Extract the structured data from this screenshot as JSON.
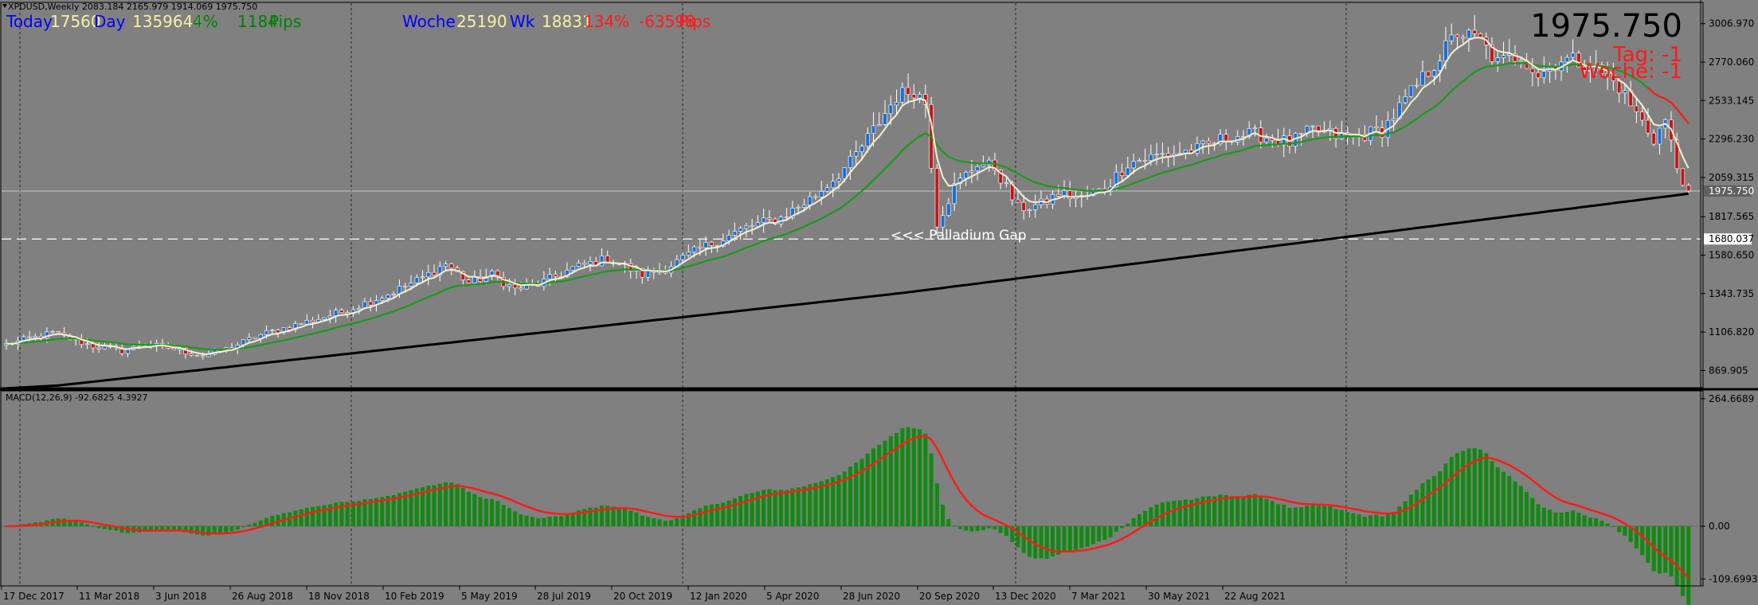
{
  "header": {
    "symbol_line": "XPDUSD,Weekly  2083.184 2165.979 1914.069 1975.750",
    "today_label": "Today",
    "today_val1": "17560",
    "day_label": "Day",
    "day_val": "1359644",
    "day_pct": "4%",
    "day_pips": "1184",
    "day_pips_suffix": "Pips",
    "week_label": "Woche",
    "week_val1": "25190",
    "week_label2": "Wk",
    "week_val2": "18831",
    "week_pct": "134%",
    "week_pips": "-63598",
    "week_pips_suffix": "Pips"
  },
  "price_box": {
    "price": "1975.750",
    "tag_line": "Tag: -1",
    "woche_line": "Woche: -1"
  },
  "annotation": {
    "gap_label": "<<< Palladium Gap",
    "gap_level": 1680.037,
    "gap_level_label": "1680.037"
  },
  "macd_label": "MACD(12,26,9) -92.6825 4.3927",
  "colors": {
    "background": "#808080",
    "bull_candle": "#1a6fd6",
    "bear_candle": "#c21818",
    "ema_fast": "#f2f0d0",
    "ema_mid": "#1a9a1a",
    "ema_slow": "#000000",
    "macd_hist": "#118a11",
    "macd_signal": "#ff1a1a",
    "blue_text": "#0000ff",
    "cream_text": "#f5f0a0",
    "green_text": "#008000",
    "red_text": "#ff1a1a"
  },
  "chart_data": {
    "type": "candlestick",
    "price_axis_ticks": [
      "3006.970",
      "2770.060",
      "2533.145",
      "2296.230",
      "2059.315",
      "1817.565",
      "1580.650",
      "1343.735",
      "1106.820",
      "869.905"
    ],
    "price_axis_values": [
      3006.97,
      2770.06,
      2533.145,
      2296.23,
      2059.315,
      1817.565,
      1580.65,
      1343.735,
      1106.82,
      869.905
    ],
    "price_range": [
      764,
      3133
    ],
    "current_price": 1975.75,
    "current_price_label": "1975.750",
    "macd_axis_ticks": [
      "264.6689",
      "0.00",
      "-109.6993"
    ],
    "macd_axis_values": [
      264.6689,
      0,
      -109.6993
    ],
    "macd_range": [
      -124,
      281
    ],
    "x_ticks": [
      "17 Dec 2017",
      "11 Mar 2018",
      "3 Jun 2018",
      "26 Aug 2018",
      "18 Nov 2018",
      "10 Feb 2019",
      "5 May 2019",
      "28 Jul 2019",
      "20 Oct 2019",
      "12 Jan 2020",
      "5 Apr 2020",
      "28 Jun 2020",
      "20 Sep 2020",
      "13 Dec 2020",
      "7 Mar 2021",
      "30 May 2021",
      "22 Aug 2021"
    ],
    "anchors": [
      [
        0,
        1030
      ],
      [
        8,
        1100
      ],
      [
        15,
        1020
      ],
      [
        20,
        990
      ],
      [
        24,
        1030
      ],
      [
        28,
        1010
      ],
      [
        34,
        960
      ],
      [
        38,
        1000
      ],
      [
        44,
        1090
      ],
      [
        52,
        1170
      ],
      [
        58,
        1230
      ],
      [
        66,
        1340
      ],
      [
        72,
        1440
      ],
      [
        76,
        1530
      ],
      [
        80,
        1410
      ],
      [
        84,
        1460
      ],
      [
        88,
        1370
      ],
      [
        92,
        1400
      ],
      [
        98,
        1500
      ],
      [
        104,
        1560
      ],
      [
        110,
        1460
      ],
      [
        114,
        1500
      ],
      [
        120,
        1620
      ],
      [
        128,
        1750
      ],
      [
        134,
        1810
      ],
      [
        140,
        1950
      ],
      [
        146,
        2150
      ],
      [
        150,
        2350
      ],
      [
        154,
        2560
      ],
      [
        157,
        2600
      ],
      [
        159,
        2520
      ],
      [
        161,
        1780
      ],
      [
        164,
        2000
      ],
      [
        168,
        2150
      ],
      [
        171,
        2120
      ],
      [
        175,
        1870
      ],
      [
        179,
        1890
      ],
      [
        182,
        1960
      ],
      [
        186,
        1930
      ],
      [
        190,
        1990
      ],
      [
        194,
        2150
      ],
      [
        200,
        2200
      ],
      [
        206,
        2230
      ],
      [
        212,
        2320
      ],
      [
        217,
        2320
      ],
      [
        222,
        2270
      ],
      [
        226,
        2350
      ],
      [
        232,
        2300
      ],
      [
        238,
        2350
      ],
      [
        243,
        2580
      ],
      [
        247,
        2760
      ],
      [
        251,
        2950
      ],
      [
        255,
        2900
      ],
      [
        258,
        2760
      ],
      [
        262,
        2820
      ],
      [
        265,
        2690
      ],
      [
        269,
        2790
      ],
      [
        273,
        2770
      ],
      [
        276,
        2700
      ],
      [
        279,
        2620
      ],
      [
        282,
        2450
      ],
      [
        285,
        2300
      ],
      [
        287,
        2410
      ],
      [
        289,
        2120
      ],
      [
        291,
        1975.75
      ]
    ],
    "weekly_candles": 292,
    "moving_averages": [
      {
        "period": "fast",
        "color": "ema_fast"
      },
      {
        "period": "mid",
        "color": "ema_mid"
      },
      {
        "period": "slow",
        "color": "ema_slow"
      }
    ],
    "macd_signal_anchors": [
      [
        0,
        25
      ],
      [
        10,
        20
      ],
      [
        20,
        -5
      ],
      [
        40,
        -15
      ],
      [
        60,
        -20
      ],
      [
        80,
        15
      ],
      [
        110,
        70
      ],
      [
        128,
        135
      ],
      [
        150,
        55
      ],
      [
        174,
        60
      ],
      [
        206,
        90
      ],
      [
        236,
        120
      ],
      [
        262,
        75
      ],
      [
        292,
        108
      ],
      [
        322,
        120
      ],
      [
        360,
        210
      ],
      [
        386,
        85
      ],
      [
        400,
        60
      ],
      [
        420,
        30
      ],
      [
        450,
        55
      ],
      [
        480,
        120
      ],
      [
        520,
        150
      ],
      [
        560,
        140
      ],
      [
        600,
        130
      ],
      [
        640,
        115
      ],
      [
        680,
        140
      ],
      [
        720,
        185
      ],
      [
        760,
        210
      ],
      [
        800,
        225
      ],
      [
        830,
        240
      ],
      [
        860,
        250
      ],
      [
        890,
        265
      ],
      [
        910,
        275
      ]
    ],
    "grid": "vertical dotted lines at x_ticks",
    "legend": "top-left text"
  }
}
